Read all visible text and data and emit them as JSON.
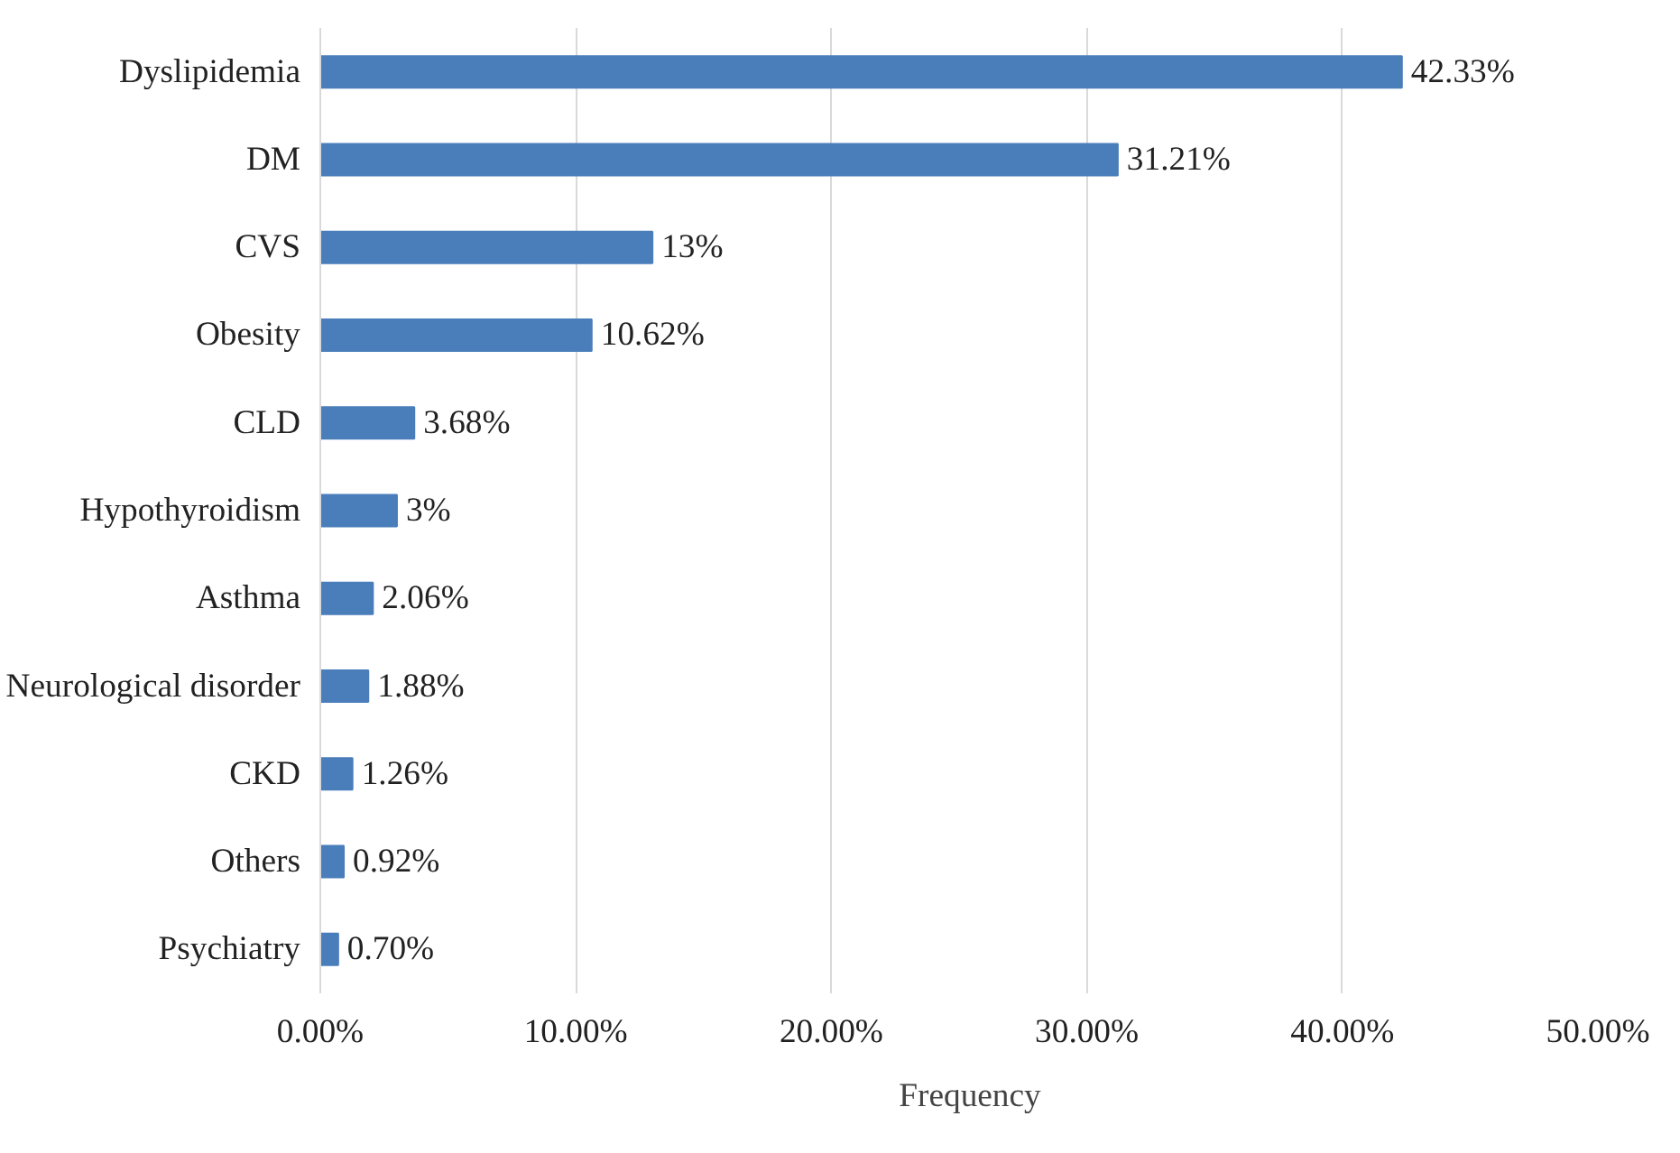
{
  "chart_data": {
    "type": "bar",
    "orientation": "horizontal",
    "categories": [
      "Dyslipidemia",
      "DM",
      "CVS",
      "Obesity",
      "CLD",
      "Hypothyroidism",
      "Asthma",
      "Neurological disorder",
      "CKD",
      "Others",
      "Psychiatry"
    ],
    "series": [
      {
        "name": "Frequency",
        "color": "#4a7ebb",
        "values": [
          42.33,
          31.21,
          13,
          10.62,
          3.68,
          3,
          2.06,
          1.88,
          1.26,
          0.92,
          0.7
        ],
        "value_labels": [
          "42.33%",
          "31.21%",
          "13%",
          "10.62%",
          "3.68%",
          "3%",
          "2.06%",
          "1.88%",
          "1.26%",
          "0.92%",
          "0.70%"
        ]
      }
    ],
    "xlim": [
      0,
      50
    ],
    "xticks": [
      {
        "value": 0,
        "label": "0.00%"
      },
      {
        "value": 10,
        "label": "10.00%"
      },
      {
        "value": 20,
        "label": "20.00%"
      },
      {
        "value": 30,
        "label": "30.00%"
      },
      {
        "value": 40,
        "label": "40.00%"
      },
      {
        "value": 50,
        "label": "50.00%"
      }
    ],
    "grid": "x",
    "legend": "bottom"
  }
}
